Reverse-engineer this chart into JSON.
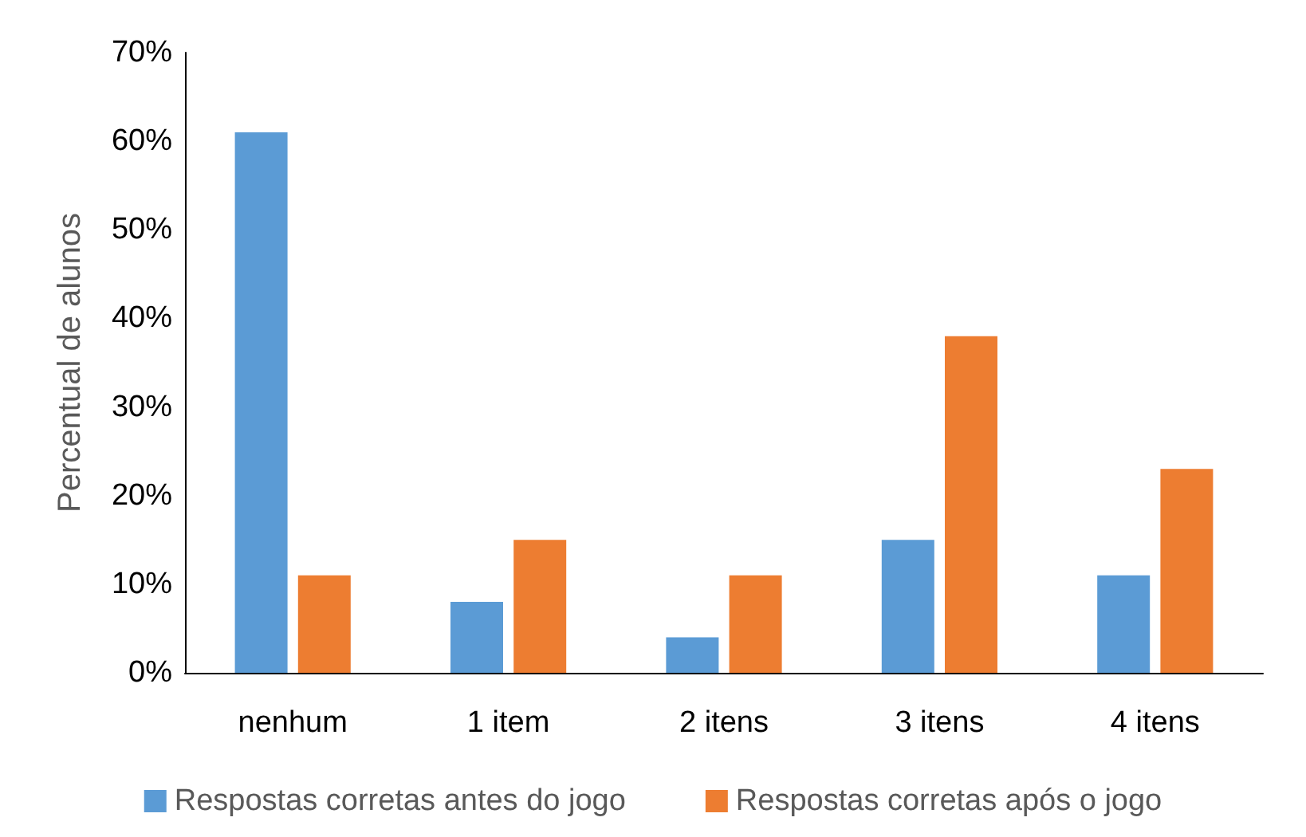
{
  "chart_data": {
    "type": "bar",
    "ylabel": "Percentual de alunos",
    "categories": [
      "nenhum",
      "1 item",
      "2 itens",
      "3 itens",
      "4 itens"
    ],
    "series": [
      {
        "name": "Respostas corretas antes do jogo",
        "color": "#5b9bd5",
        "values": [
          61,
          8,
          4,
          15,
          11
        ]
      },
      {
        "name": "Respostas corretas após o jogo",
        "color": "#ed7d31",
        "values": [
          11,
          15,
          11,
          38,
          23
        ]
      }
    ],
    "ylim": [
      0,
      70
    ],
    "yticks": [
      {
        "value": 0,
        "label": "0%"
      },
      {
        "value": 10,
        "label": "10%"
      },
      {
        "value": 20,
        "label": "20%"
      },
      {
        "value": 30,
        "label": "30%"
      },
      {
        "value": 40,
        "label": "40%"
      },
      {
        "value": 50,
        "label": "50%"
      },
      {
        "value": 60,
        "label": "60%"
      },
      {
        "value": 70,
        "label": "70%"
      }
    ],
    "grid": false,
    "legend": "bottom"
  }
}
